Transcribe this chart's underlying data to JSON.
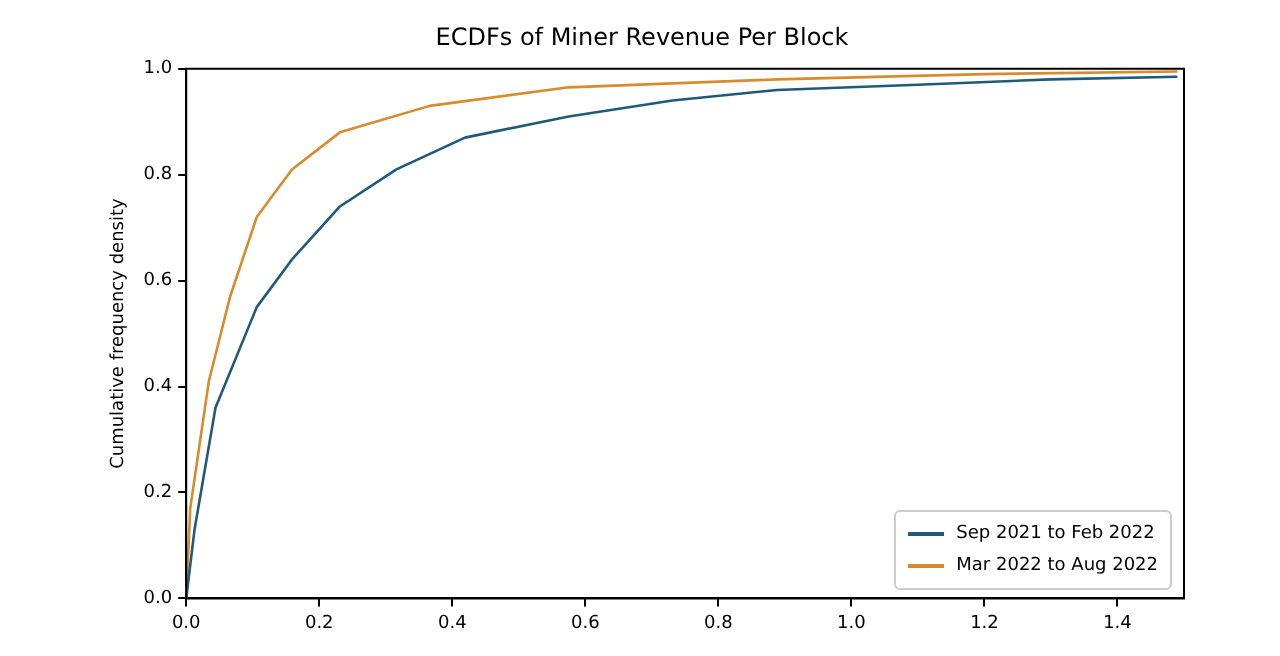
{
  "chart_data": {
    "type": "line",
    "title": "ECDFs of Miner Revenue Per Block",
    "ylabel": "Cumulative frequency density",
    "xlim": [
      0,
      1.5
    ],
    "xticks": [
      {
        "value": 0,
        "label": "0.0"
      },
      {
        "value": 0.2,
        "label": "0.2"
      },
      {
        "value": 0.4,
        "label": "0.4"
      },
      {
        "value": 0.6,
        "label": "0.6"
      },
      {
        "value": 0.8,
        "label": "0.8"
      },
      {
        "value": 1.0,
        "label": "1.0"
      },
      {
        "value": 1.2,
        "label": "1.2"
      },
      {
        "value": 1.4,
        "label": "1.4"
      }
    ],
    "ylim": [
      0,
      1
    ],
    "yticks": [
      {
        "value": 0,
        "label": "0.0"
      },
      {
        "value": 0.2,
        "label": "0.2"
      },
      {
        "value": 0.4,
        "label": "0.4"
      },
      {
        "value": 0.6,
        "label": "0.6"
      },
      {
        "value": 0.8,
        "label": "0.8"
      },
      {
        "value": 1.0,
        "label": "1.0"
      }
    ],
    "grid": false,
    "legend": "bottom right",
    "marker": "none",
    "line_style": "solid",
    "series": [
      {
        "name": "Sep 2021 to Feb 2022",
        "color": "#1f5a7a",
        "x": [
          0,
          0.0125,
          0.044,
          0.106,
          0.159,
          0.231,
          0.316,
          0.419,
          0.575,
          0.731,
          0.888,
          1.1,
          1.3,
          1.49
        ],
        "values": [
          0,
          0.13,
          0.36,
          0.55,
          0.64,
          0.74,
          0.81,
          0.87,
          0.91,
          0.94,
          0.96,
          0.97,
          0.98,
          0.985
        ]
      },
      {
        "name": "Mar 2022 to Aug 2022",
        "color": "#d98a2b",
        "x": [
          0,
          0.006,
          0.034,
          0.066,
          0.106,
          0.159,
          0.231,
          0.366,
          0.575,
          0.888,
          1.2,
          1.49
        ],
        "values": [
          0,
          0.17,
          0.41,
          0.57,
          0.72,
          0.81,
          0.88,
          0.93,
          0.965,
          0.98,
          0.99,
          0.995
        ]
      }
    ]
  }
}
